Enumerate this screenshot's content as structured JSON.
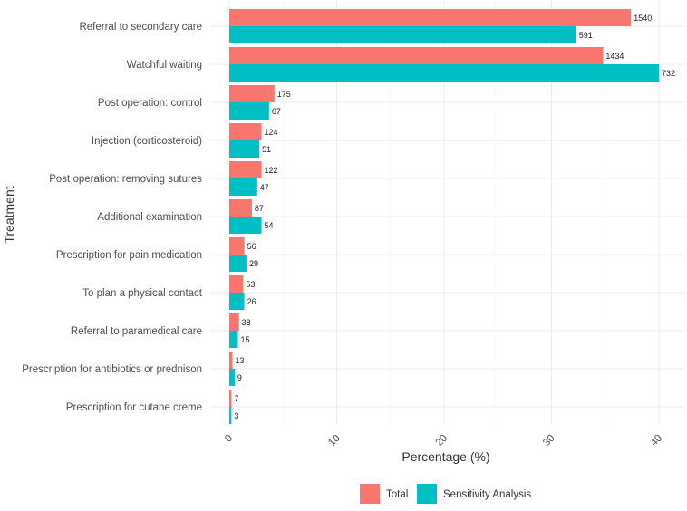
{
  "chart_data": {
    "type": "bar",
    "orientation": "horizontal",
    "title": "",
    "xlabel": "Percentage (%)",
    "ylabel": "Treatment",
    "xlim": [
      0,
      42
    ],
    "xticks": [
      "0",
      "10",
      "20",
      "30",
      "40"
    ],
    "grid": true,
    "legend_position": "bottom",
    "categories": [
      "Referral to secondary care",
      "Watchful waiting",
      "Post operation: control",
      "Injection (corticosteroid)",
      "Post operation: removing sutures",
      "Additional examination",
      "Prescription for pain medication",
      "To plan a physical contact",
      "Referral to paramedical care",
      "Prescription for antibiotics or prednison",
      "Prescription for cutane creme"
    ],
    "series": [
      {
        "name": "Total",
        "color": "#F8766D",
        "values": [
          37.4,
          34.8,
          4.2,
          3.0,
          3.0,
          2.1,
          1.4,
          1.3,
          0.9,
          0.3,
          0.2
        ],
        "labels": [
          "1540",
          "1434",
          "175",
          "124",
          "122",
          "87",
          "56",
          "53",
          "38",
          "13",
          "7"
        ]
      },
      {
        "name": "Sensitivity Analysis",
        "color": "#00BFC4",
        "values": [
          32.3,
          40.0,
          3.7,
          2.8,
          2.6,
          3.0,
          1.6,
          1.4,
          0.8,
          0.5,
          0.2
        ],
        "labels": [
          "591",
          "732",
          "67",
          "51",
          "47",
          "54",
          "29",
          "26",
          "15",
          "9",
          "3"
        ]
      }
    ]
  }
}
